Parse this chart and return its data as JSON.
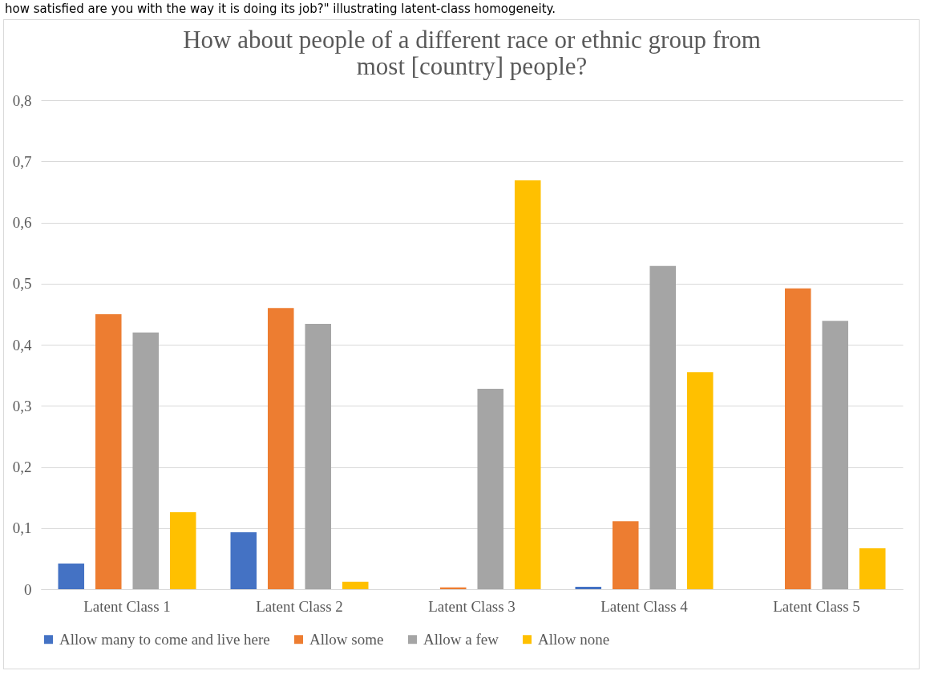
{
  "chart_data": {
    "type": "bar",
    "title": "How about people of a different race or ethnic group from most [country] people?",
    "annotations": [
      "how satisfied are you with the way it is doing its job?\" illustrating latent-class homogeneity."
    ],
    "categories": [
      "Latent Class 1",
      "Latent Class 2",
      "Latent Class 3",
      "Latent Class 4",
      "Latent Class 5"
    ],
    "series": [
      {
        "name": "Allow many to come and live here",
        "color": "#4472c4",
        "values": [
          0.042,
          0.093,
          0,
          0.004,
          0
        ]
      },
      {
        "name": "Allow some",
        "color": "#ed7d31",
        "values": [
          0.45,
          0.46,
          0.003,
          0.111,
          0.492
        ]
      },
      {
        "name": "Allow a few",
        "color": "#a5a5a5",
        "values": [
          0.42,
          0.434,
          0.328,
          0.529,
          0.439
        ]
      },
      {
        "name": "Allow none",
        "color": "#ffc000",
        "values": [
          0.126,
          0.012,
          0.669,
          0.355,
          0.067
        ]
      }
    ],
    "ylim": [
      0,
      0.8
    ],
    "yticks": [
      0,
      {
        "value": 0.1,
        "label": "0,1"
      },
      {
        "value": 0.2,
        "label": "0,2"
      },
      {
        "value": 0.3,
        "label": "0,3"
      },
      {
        "value": 0.4,
        "label": "0,4"
      },
      {
        "value": 0.5,
        "label": "0,5"
      },
      {
        "value": 0.6,
        "label": "0,6"
      },
      {
        "value": 0.7,
        "label": "0,7"
      },
      {
        "value": 0.8,
        "label": "0,8"
      }
    ],
    "grid": "y",
    "legend": "bottom"
  }
}
